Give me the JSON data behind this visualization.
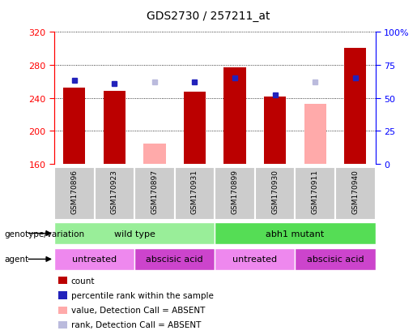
{
  "title": "GDS2730 / 257211_at",
  "samples": [
    "GSM170896",
    "GSM170923",
    "GSM170897",
    "GSM170931",
    "GSM170899",
    "GSM170930",
    "GSM170911",
    "GSM170940"
  ],
  "count_values": [
    252,
    248,
    null,
    247,
    277,
    241,
    null,
    300
  ],
  "count_absent_values": [
    null,
    null,
    185,
    null,
    null,
    null,
    233,
    null
  ],
  "rank_values": [
    63,
    61,
    null,
    62,
    65,
    52,
    null,
    65
  ],
  "rank_absent_values": [
    null,
    null,
    62,
    null,
    null,
    null,
    62,
    null
  ],
  "ylim_left": [
    160,
    320
  ],
  "ylim_right": [
    0,
    100
  ],
  "yticks_left": [
    160,
    200,
    240,
    280,
    320
  ],
  "yticks_right": [
    0,
    25,
    50,
    75,
    100
  ],
  "bar_width": 0.55,
  "count_color": "#bb0000",
  "count_absent_color": "#ffaaaa",
  "rank_color": "#2222bb",
  "rank_absent_color": "#bbbbdd",
  "genotype_row": [
    {
      "label": "wild type",
      "start": 0,
      "end": 4,
      "color": "#99ee99"
    },
    {
      "label": "abh1 mutant",
      "start": 4,
      "end": 8,
      "color": "#55dd55"
    }
  ],
  "agent_row": [
    {
      "label": "untreated",
      "start": 0,
      "end": 2,
      "color": "#ee88ee"
    },
    {
      "label": "abscisic acid",
      "start": 2,
      "end": 4,
      "color": "#cc44cc"
    },
    {
      "label": "untreated",
      "start": 4,
      "end": 6,
      "color": "#ee88ee"
    },
    {
      "label": "abscisic acid",
      "start": 6,
      "end": 8,
      "color": "#cc44cc"
    }
  ],
  "genotype_label": "genotype/variation",
  "agent_label": "agent",
  "legend_items": [
    {
      "color": "#bb0000",
      "label": "count"
    },
    {
      "color": "#2222bb",
      "label": "percentile rank within the sample"
    },
    {
      "color": "#ffaaaa",
      "label": "value, Detection Call = ABSENT"
    },
    {
      "color": "#bbbbdd",
      "label": "rank, Detection Call = ABSENT"
    }
  ]
}
